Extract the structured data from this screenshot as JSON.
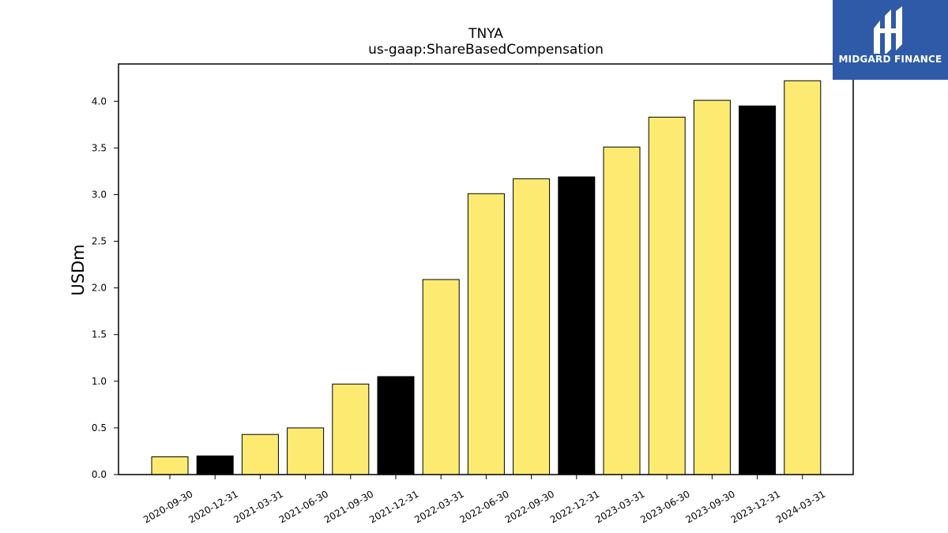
{
  "chart_data": {
    "type": "bar",
    "title": "TNYA",
    "subtitle": "us-gaap:ShareBasedCompensation",
    "xlabel": "",
    "ylabel": "USDm",
    "ylim": [
      0,
      4.4
    ],
    "yticks": [
      "0.0",
      "0.5",
      "1.0",
      "1.5",
      "2.0",
      "2.5",
      "3.0",
      "3.5",
      "4.0"
    ],
    "categories": [
      "2020-09-30",
      "2020-12-31",
      "2021-03-31",
      "2021-06-30",
      "2021-09-30",
      "2021-12-31",
      "2022-03-31",
      "2022-06-30",
      "2022-09-30",
      "2022-12-31",
      "2023-03-31",
      "2023-06-30",
      "2023-09-30",
      "2023-12-31",
      "2024-03-31"
    ],
    "values": [
      0.19,
      0.2,
      0.43,
      0.5,
      0.97,
      1.05,
      2.09,
      3.01,
      3.17,
      3.19,
      3.51,
      3.83,
      4.01,
      3.95,
      4.22
    ],
    "bar_colors": [
      "#FDEB71",
      "#000000",
      "#FDEB71",
      "#FDEB71",
      "#FDEB71",
      "#000000",
      "#FDEB71",
      "#FDEB71",
      "#FDEB71",
      "#000000",
      "#FDEB71",
      "#FDEB71",
      "#FDEB71",
      "#000000",
      "#FDEB71"
    ],
    "grid": false
  },
  "logo": {
    "text": "MIDGARD FINANCE",
    "background": "#2f5aa8"
  }
}
